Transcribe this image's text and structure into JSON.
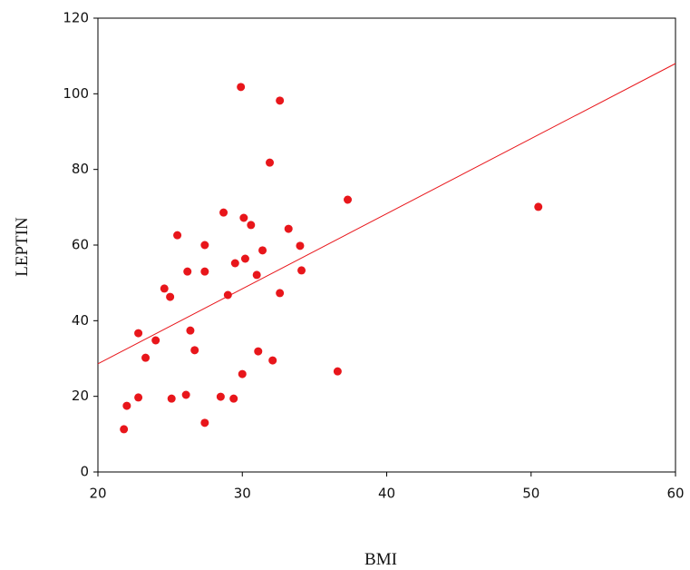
{
  "chart_data": {
    "type": "scatter",
    "x_label": "BMI",
    "y_label": "LEPTIN",
    "xlim": [
      20,
      60
    ],
    "xticks": [
      20,
      30,
      40,
      50,
      60
    ],
    "ylim": [
      0,
      120
    ],
    "yticks": [
      0,
      20,
      40,
      60,
      80,
      100,
      120
    ],
    "series": [
      {
        "color": "#e8161b",
        "x": [
          21.8,
          22.0,
          22.8,
          22.8,
          23.3,
          24.0,
          24.6,
          25.0,
          25.1,
          25.5,
          26.1,
          26.2,
          26.4,
          26.7,
          27.4,
          27.4,
          27.4,
          28.5,
          28.7,
          29.0,
          29.4,
          29.5,
          29.9,
          30.0,
          30.1,
          30.2,
          30.6,
          31.0,
          31.1,
          31.4,
          31.9,
          32.1,
          32.6,
          32.6,
          33.2,
          34.0,
          34.1,
          36.6,
          37.3,
          50.5
        ],
        "values": [
          11.3,
          17.5,
          19.7,
          36.7,
          30.2,
          34.8,
          48.5,
          46.3,
          19.4,
          62.6,
          20.4,
          53.0,
          37.4,
          32.2,
          60.0,
          53.0,
          13.0,
          19.9,
          68.6,
          46.8,
          19.4,
          55.2,
          101.8,
          25.9,
          67.2,
          56.4,
          65.3,
          52.1,
          31.9,
          58.6,
          81.8,
          29.5,
          98.2,
          47.3,
          64.3,
          59.8,
          53.3,
          26.6,
          72.0,
          70.1
        ]
      }
    ],
    "fit_line": {
      "color": "#e8161b",
      "x": [
        20,
        60
      ],
      "values": [
        28.6,
        108.0
      ]
    }
  }
}
